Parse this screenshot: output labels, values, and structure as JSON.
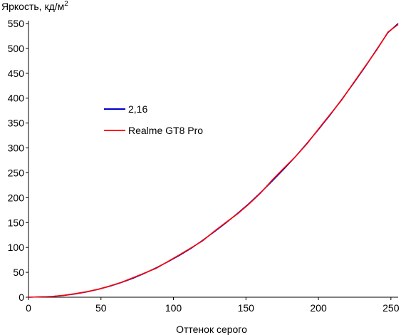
{
  "chart_data": {
    "type": "line",
    "title": "",
    "ylabel": "Яркость, кд/м",
    "ylabel_superscript": "2",
    "xlabel": "Оттенок серого",
    "xlim": [
      0,
      255
    ],
    "ylim": [
      0,
      550
    ],
    "x_ticks": [
      0,
      50,
      100,
      150,
      200,
      250
    ],
    "y_ticks": [
      0,
      50,
      100,
      150,
      200,
      250,
      300,
      350,
      400,
      450,
      500,
      550
    ],
    "grid": false,
    "legend_position": "middle-left",
    "series": [
      {
        "name": "2,16",
        "color": "#0000cc",
        "x": [
          0,
          16,
          24,
          32,
          40,
          48,
          56,
          64,
          72,
          80,
          88,
          96,
          104,
          112,
          120,
          128,
          136,
          144,
          152,
          160,
          168,
          176,
          184,
          192,
          200,
          208,
          216,
          224,
          232,
          240,
          248,
          255
        ],
        "y": [
          0,
          1.4,
          3.5,
          6.5,
          10.6,
          15.8,
          22,
          29.5,
          38,
          48,
          59,
          71,
          84,
          98,
          114,
          131,
          149,
          168,
          188,
          210,
          233,
          257,
          282,
          309,
          337,
          366,
          397,
          429,
          462,
          497,
          532,
          550
        ]
      },
      {
        "name": "Realme GT8 Pro",
        "color": "#ff0000",
        "x": [
          0,
          16,
          24,
          32,
          40,
          48,
          56,
          64,
          72,
          80,
          88,
          96,
          104,
          112,
          120,
          128,
          136,
          144,
          152,
          160,
          168,
          176,
          184,
          192,
          200,
          208,
          216,
          224,
          232,
          240,
          248,
          255
        ],
        "y": [
          0,
          1.5,
          3.7,
          7,
          11,
          16,
          22.5,
          30,
          39,
          48.5,
          58,
          71.5,
          85,
          99,
          113,
          132,
          150,
          167,
          187,
          209,
          235,
          259,
          282,
          308,
          338,
          367,
          396,
          430,
          463,
          496,
          533,
          548
        ]
      }
    ]
  }
}
